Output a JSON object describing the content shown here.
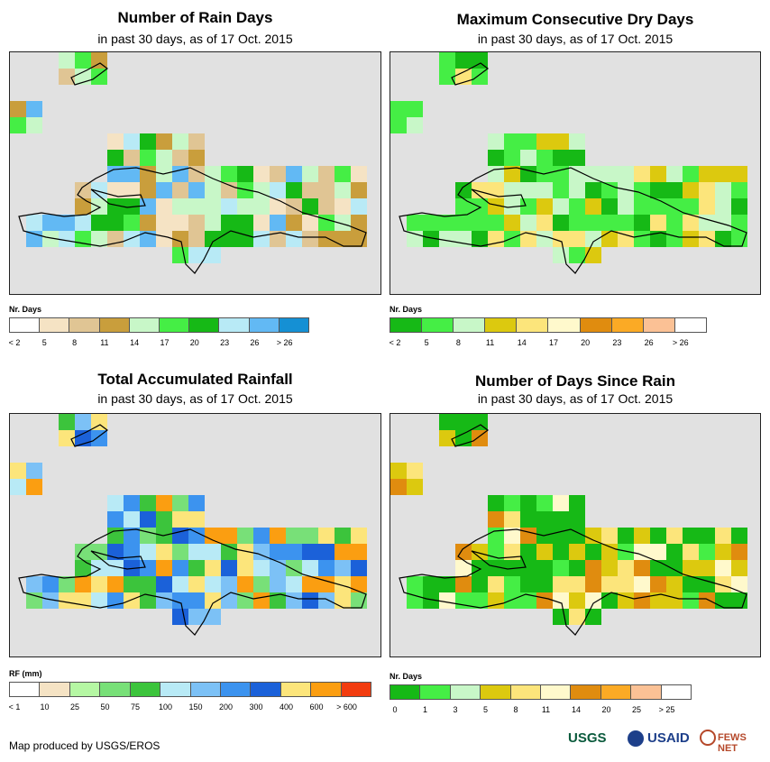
{
  "panels": [
    {
      "title": "Number of Rain Days",
      "subtitle": "in past 30 days, as of 17 Oct. 2015",
      "legend_title": "Nr. Days",
      "legend_colors": [
        "#ffffff",
        "#f5e3c4",
        "#e0c594",
        "#c99e3c",
        "#c8f7c8",
        "#45ee45",
        "#16b916",
        "#b8eaf6",
        "#62b9f4",
        "#1590d4"
      ],
      "legend_labels": [
        "< 2",
        "5",
        "8",
        "11",
        "14",
        "17",
        "20",
        "23",
        "26",
        "> 26"
      ]
    },
    {
      "title": "Maximum Consecutive Dry Days",
      "subtitle": "in past 30 days, as of 17 Oct. 2015",
      "legend_title": "Nr. Days",
      "legend_colors": [
        "#16b916",
        "#45ee45",
        "#c8f7c8",
        "#dcc90f",
        "#fce57b",
        "#fff9cc",
        "#e08c0f",
        "#fbaa25",
        "#fbc195",
        "#ffffff"
      ],
      "legend_labels": [
        "< 2",
        "5",
        "8",
        "11",
        "14",
        "17",
        "20",
        "23",
        "26",
        "> 26"
      ]
    },
    {
      "title": "Total Accumulated Rainfall",
      "subtitle": "in past 30 days, as of 17 Oct. 2015",
      "legend_title": "RF (mm)",
      "legend_colors": [
        "#ffffff",
        "#f5e3c4",
        "#b5f7a3",
        "#78e078",
        "#3cc43c",
        "#b8eaf6",
        "#7cc1f6",
        "#3c93ef",
        "#1b61d9",
        "#fce57b",
        "#fb9e11",
        "#f23c0f"
      ],
      "legend_labels": [
        "< 1",
        "10",
        "25",
        "50",
        "75",
        "100",
        "150",
        "200",
        "300",
        "400",
        "600",
        "> 600"
      ]
    },
    {
      "title": "Number of Days Since Rain",
      "subtitle": "in past 30 days, as of 17 Oct. 2015",
      "legend_title": "Nr. Days",
      "legend_colors": [
        "#16b916",
        "#45ee45",
        "#c8f7c8",
        "#dcc90f",
        "#fce57b",
        "#fff9cc",
        "#e08c0f",
        "#fbaa25",
        "#fbc195",
        "#ffffff"
      ],
      "legend_labels": [
        "0",
        "1",
        "3",
        "5",
        "8",
        "11",
        "14",
        "20",
        "25",
        "> 25"
      ]
    }
  ],
  "credit": "Map produced by USGS/EROS",
  "logos": [
    "USGS",
    "USAID",
    "FEWS NET"
  ],
  "colors": {
    "map_background": "#e1e1e1",
    "coastline": "#000000"
  }
}
